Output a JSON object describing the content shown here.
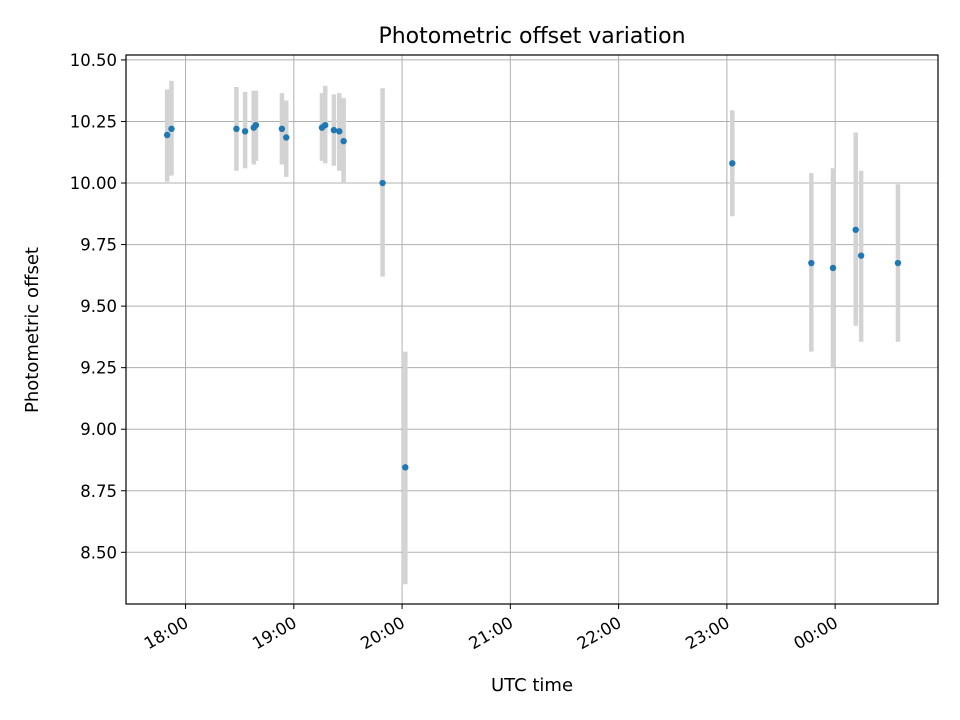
{
  "chart_data": {
    "type": "scatter",
    "title": "Photometric offset variation",
    "xlabel": "UTC time",
    "ylabel": "Photometric offset",
    "x_unit": "UTC time of day (hours; values >= 24 fall after midnight)",
    "xlim": [
      17.45,
      24.95
    ],
    "ylim": [
      8.29,
      10.52
    ],
    "x_ticks": [
      {
        "x": 18,
        "label": "18:00"
      },
      {
        "x": 19,
        "label": "19:00"
      },
      {
        "x": 20,
        "label": "20:00"
      },
      {
        "x": 21,
        "label": "21:00"
      },
      {
        "x": 22,
        "label": "22:00"
      },
      {
        "x": 23,
        "label": "23:00"
      },
      {
        "x": 24,
        "label": "00:00"
      }
    ],
    "y_ticks": [
      {
        "y": 8.5,
        "label": "8.50"
      },
      {
        "y": 8.75,
        "label": "8.75"
      },
      {
        "y": 9.0,
        "label": "9.00"
      },
      {
        "y": 9.25,
        "label": "9.25"
      },
      {
        "y": 9.5,
        "label": "9.50"
      },
      {
        "y": 9.75,
        "label": "9.75"
      },
      {
        "y": 10.0,
        "label": "10.00"
      },
      {
        "y": 10.25,
        "label": "10.25"
      },
      {
        "y": 10.5,
        "label": "10.50"
      }
    ],
    "grid": true,
    "marker_color": "#1f77b4",
    "errorbar_color": "#d3d3d3",
    "series": [
      {
        "points": [
          {
            "x": 17.83,
            "y": 10.195,
            "err_low": 10.005,
            "err_high": 10.38
          },
          {
            "x": 17.87,
            "y": 10.22,
            "err_low": 10.03,
            "err_high": 10.415
          },
          {
            "x": 18.47,
            "y": 10.22,
            "err_low": 10.05,
            "err_high": 10.39
          },
          {
            "x": 18.55,
            "y": 10.21,
            "err_low": 10.06,
            "err_high": 10.37
          },
          {
            "x": 18.63,
            "y": 10.225,
            "err_low": 10.075,
            "err_high": 10.375
          },
          {
            "x": 18.65,
            "y": 10.235,
            "err_low": 10.09,
            "err_high": 10.375
          },
          {
            "x": 18.89,
            "y": 10.22,
            "err_low": 10.075,
            "err_high": 10.365
          },
          {
            "x": 18.93,
            "y": 10.185,
            "err_low": 10.025,
            "err_high": 10.335
          },
          {
            "x": 19.26,
            "y": 10.225,
            "err_low": 10.09,
            "err_high": 10.365
          },
          {
            "x": 19.29,
            "y": 10.235,
            "err_low": 10.08,
            "err_high": 10.395
          },
          {
            "x": 19.37,
            "y": 10.215,
            "err_low": 10.07,
            "err_high": 10.36
          },
          {
            "x": 19.42,
            "y": 10.21,
            "err_low": 10.05,
            "err_high": 10.365
          },
          {
            "x": 19.46,
            "y": 10.17,
            "err_low": 10.0,
            "err_high": 10.345
          },
          {
            "x": 19.82,
            "y": 10.0,
            "err_low": 9.62,
            "err_high": 10.385
          },
          {
            "x": 20.03,
            "y": 8.845,
            "err_low": 8.37,
            "err_high": 9.315
          },
          {
            "x": 23.05,
            "y": 10.08,
            "err_low": 9.865,
            "err_high": 10.295
          },
          {
            "x": 23.78,
            "y": 9.675,
            "err_low": 9.315,
            "err_high": 10.04
          },
          {
            "x": 23.98,
            "y": 9.655,
            "err_low": 9.25,
            "err_high": 10.06
          },
          {
            "x": 24.19,
            "y": 9.81,
            "err_low": 9.42,
            "err_high": 10.205
          },
          {
            "x": 24.24,
            "y": 9.705,
            "err_low": 9.355,
            "err_high": 10.05
          },
          {
            "x": 24.58,
            "y": 9.675,
            "err_low": 9.355,
            "err_high": 9.995
          }
        ]
      }
    ]
  }
}
